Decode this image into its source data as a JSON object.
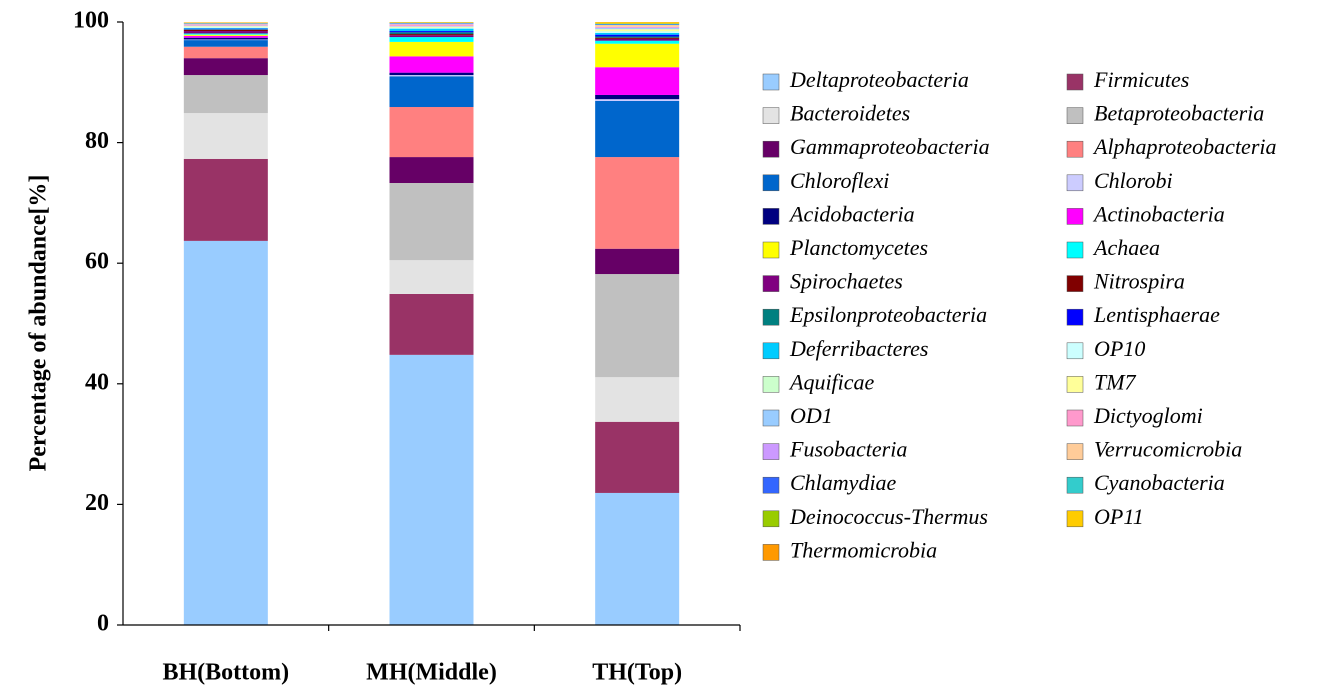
{
  "chart_data": {
    "type": "stacked_bar",
    "y_label": "Percentage of abundance[%]",
    "categories": [
      "BH(Bottom)",
      "MH(Middle)",
      "TH(Top)"
    ],
    "ylim": [
      0,
      100
    ],
    "yticks": [
      0,
      20,
      40,
      60,
      80,
      100
    ],
    "series": [
      {
        "name": "Deltaproteobacteria",
        "color": "#99ccff",
        "values": [
          63.7,
          44.8,
          21.9
        ]
      },
      {
        "name": "Firmicutes",
        "color": "#993366",
        "values": [
          13.6,
          10.1,
          11.8
        ]
      },
      {
        "name": "Bacteroidetes",
        "color": "#e3e3e3",
        "values": [
          7.6,
          5.6,
          7.4
        ]
      },
      {
        "name": "Betaproteobacteria",
        "color": "#c0c0c0",
        "values": [
          6.3,
          12.8,
          17.1
        ]
      },
      {
        "name": "Gammaproteobacteria",
        "color": "#660066",
        "values": [
          2.8,
          4.3,
          4.2
        ]
      },
      {
        "name": "Alphaproteobacteria",
        "color": "#ff8080",
        "values": [
          1.9,
          8.3,
          15.2
        ]
      },
      {
        "name": "Chloroflexi",
        "color": "#0066cc",
        "values": [
          1.1,
          5.1,
          9.3
        ]
      },
      {
        "name": "Chlorobi",
        "color": "#ccccff",
        "values": [
          0.1,
          0.2,
          0.3
        ]
      },
      {
        "name": "Acidobacteria",
        "color": "#000080",
        "values": [
          0.3,
          0.4,
          0.7
        ]
      },
      {
        "name": "Actinobacteria",
        "color": "#ff00ff",
        "values": [
          0.3,
          2.7,
          4.6
        ]
      },
      {
        "name": "Planctomycetes",
        "color": "#ffff00",
        "values": [
          0.2,
          2.4,
          3.9
        ]
      },
      {
        "name": "Achaea",
        "color": "#00ffff",
        "values": [
          0.2,
          0.8,
          0.5
        ]
      },
      {
        "name": "Spirochaetes",
        "color": "#800080",
        "values": [
          0.4,
          0.3,
          0.3
        ]
      },
      {
        "name": "Nitrospira",
        "color": "#800000",
        "values": [
          0.2,
          0.2,
          0.2
        ]
      },
      {
        "name": "Epsilonproteobacteria",
        "color": "#008080",
        "values": [
          0.1,
          0.3,
          0.2
        ]
      },
      {
        "name": "Lentisphaerae",
        "color": "#0000ff",
        "values": [
          0.1,
          0.2,
          0.3
        ]
      },
      {
        "name": "Deferribacteres",
        "color": "#00ccff",
        "values": [
          0.1,
          0.4,
          0.3
        ]
      },
      {
        "name": "OP10",
        "color": "#ccffff",
        "values": [
          0.1,
          0.1,
          0.2
        ]
      },
      {
        "name": "Aquificae",
        "color": "#ccffcc",
        "values": [
          0.1,
          0.1,
          0.1
        ]
      },
      {
        "name": "TM7",
        "color": "#ffff99",
        "values": [
          0.1,
          0.1,
          0.3
        ]
      },
      {
        "name": "OD1",
        "color": "#99ccff",
        "values": [
          0.1,
          0.1,
          0.2
        ]
      },
      {
        "name": "Dictyoglomi",
        "color": "#ff99cc",
        "values": [
          0.1,
          0.2,
          0.1
        ]
      },
      {
        "name": "Fusobacteria",
        "color": "#cc99ff",
        "values": [
          0.1,
          0.1,
          0.1
        ]
      },
      {
        "name": "Verrucomicrobia",
        "color": "#ffcc99",
        "values": [
          0.1,
          0.1,
          0.3
        ]
      },
      {
        "name": "Chlamydiae",
        "color": "#3366ff",
        "values": [
          0.05,
          0.1,
          0.1
        ]
      },
      {
        "name": "Cyanobacteria",
        "color": "#33cccc",
        "values": [
          0.05,
          0.05,
          0.1
        ]
      },
      {
        "name": "Deinococcus-Thermus",
        "color": "#99cc00",
        "values": [
          0.05,
          0.05,
          0.05
        ]
      },
      {
        "name": "OP11",
        "color": "#ffcc00",
        "values": [
          0.05,
          0.05,
          0.2
        ]
      },
      {
        "name": "Thermomicrobia",
        "color": "#ff9900",
        "values": [
          0.05,
          0.05,
          0.05
        ]
      }
    ]
  }
}
